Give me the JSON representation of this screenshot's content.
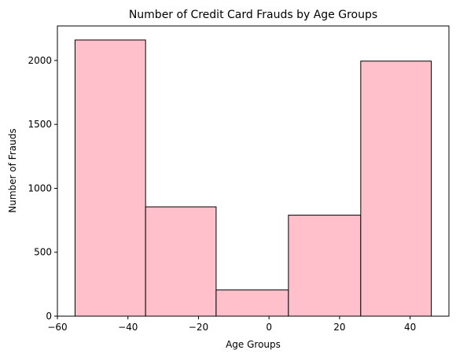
{
  "chart_data": {
    "type": "bar",
    "title": "Number of Credit Card Frauds by Age Groups",
    "xlabel": "Age Groups",
    "ylabel": "Number of Frauds",
    "bins": [
      {
        "start": -55,
        "end": -35,
        "value": 2160
      },
      {
        "start": -35,
        "end": -15,
        "value": 855
      },
      {
        "start": -15,
        "end": 5.5,
        "value": 205
      },
      {
        "start": 5.5,
        "end": 26,
        "value": 790
      },
      {
        "start": 26,
        "end": 46,
        "value": 1995
      }
    ],
    "xlim": [
      -60,
      51
    ],
    "ylim": [
      0,
      2270
    ],
    "x_ticks": [
      -60,
      -40,
      -20,
      0,
      20,
      40
    ],
    "x_tick_labels": [
      "−60",
      "−40",
      "−20",
      "0",
      "20",
      "40"
    ],
    "y_ticks": [
      0,
      500,
      1000,
      1500,
      2000
    ],
    "y_tick_labels": [
      "0",
      "500",
      "1000",
      "1500",
      "2000"
    ],
    "bar_color": "#FFC0CB",
    "edge_color": "#000000",
    "grid": false,
    "legend": "none"
  }
}
